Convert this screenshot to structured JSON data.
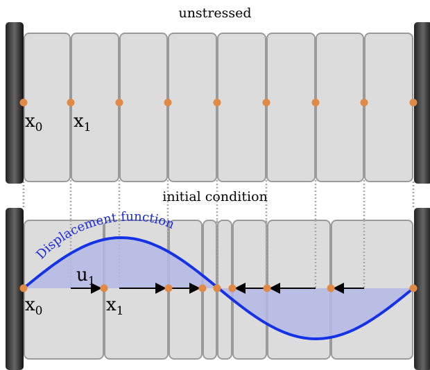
{
  "panels": [
    {
      "title": "unstressed",
      "labels": [
        {
          "base": "x",
          "sub": "0"
        },
        {
          "base": "x",
          "sub": "1"
        }
      ]
    },
    {
      "title": "initial condition",
      "labels": [
        {
          "base": "x",
          "sub": "0"
        },
        {
          "base": "x",
          "sub": "1"
        }
      ],
      "vector": {
        "base": "u",
        "sub": "1"
      },
      "curve": "Displacement function"
    }
  ]
}
